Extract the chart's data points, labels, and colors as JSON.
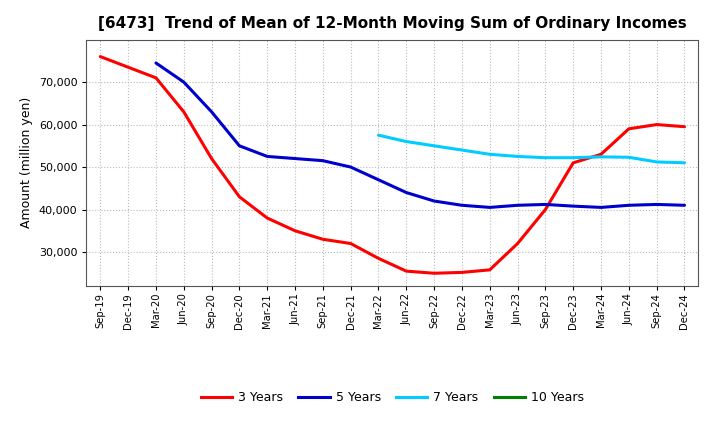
{
  "title": "[6473]  Trend of Mean of 12-Month Moving Sum of Ordinary Incomes",
  "ylabel": "Amount (million yen)",
  "ylim": [
    22000,
    80000
  ],
  "yticks": [
    30000,
    40000,
    50000,
    60000,
    70000
  ],
  "background_color": "#ffffff",
  "grid_color": "#bbbbbb",
  "x_labels": [
    "Sep-19",
    "Dec-19",
    "Mar-20",
    "Jun-20",
    "Sep-20",
    "Dec-20",
    "Mar-21",
    "Jun-21",
    "Sep-21",
    "Dec-21",
    "Mar-22",
    "Jun-22",
    "Sep-22",
    "Dec-22",
    "Mar-23",
    "Jun-23",
    "Sep-23",
    "Dec-23",
    "Mar-24",
    "Jun-24",
    "Sep-24",
    "Dec-24"
  ],
  "series": {
    "3 Years": {
      "color": "#ff0000",
      "data": [
        76000,
        73500,
        71000,
        63000,
        52000,
        43000,
        38000,
        35000,
        33000,
        32000,
        28500,
        25500,
        25000,
        25200,
        25800,
        32000,
        40000,
        51000,
        53000,
        59000,
        60000,
        59500
      ]
    },
    "5 Years": {
      "color": "#0000cc",
      "data": [
        null,
        null,
        74500,
        70000,
        63000,
        55000,
        52500,
        52000,
        51500,
        50000,
        47000,
        44000,
        42000,
        41000,
        40500,
        41000,
        41200,
        40800,
        40500,
        41000,
        41200,
        41000
      ]
    },
    "7 Years": {
      "color": "#00ccff",
      "data": [
        null,
        null,
        null,
        null,
        null,
        null,
        null,
        null,
        null,
        null,
        57500,
        56000,
        55000,
        54000,
        53000,
        52500,
        52200,
        52200,
        52400,
        52300,
        51200,
        51000
      ]
    },
    "10 Years": {
      "color": "#008000",
      "data": [
        null,
        null,
        null,
        null,
        null,
        null,
        null,
        null,
        null,
        null,
        null,
        null,
        null,
        null,
        null,
        null,
        null,
        null,
        null,
        null,
        null,
        null
      ]
    }
  },
  "legend_labels": [
    "3 Years",
    "5 Years",
    "7 Years",
    "10 Years"
  ],
  "legend_colors": [
    "#ff0000",
    "#0000cc",
    "#00ccff",
    "#008000"
  ]
}
